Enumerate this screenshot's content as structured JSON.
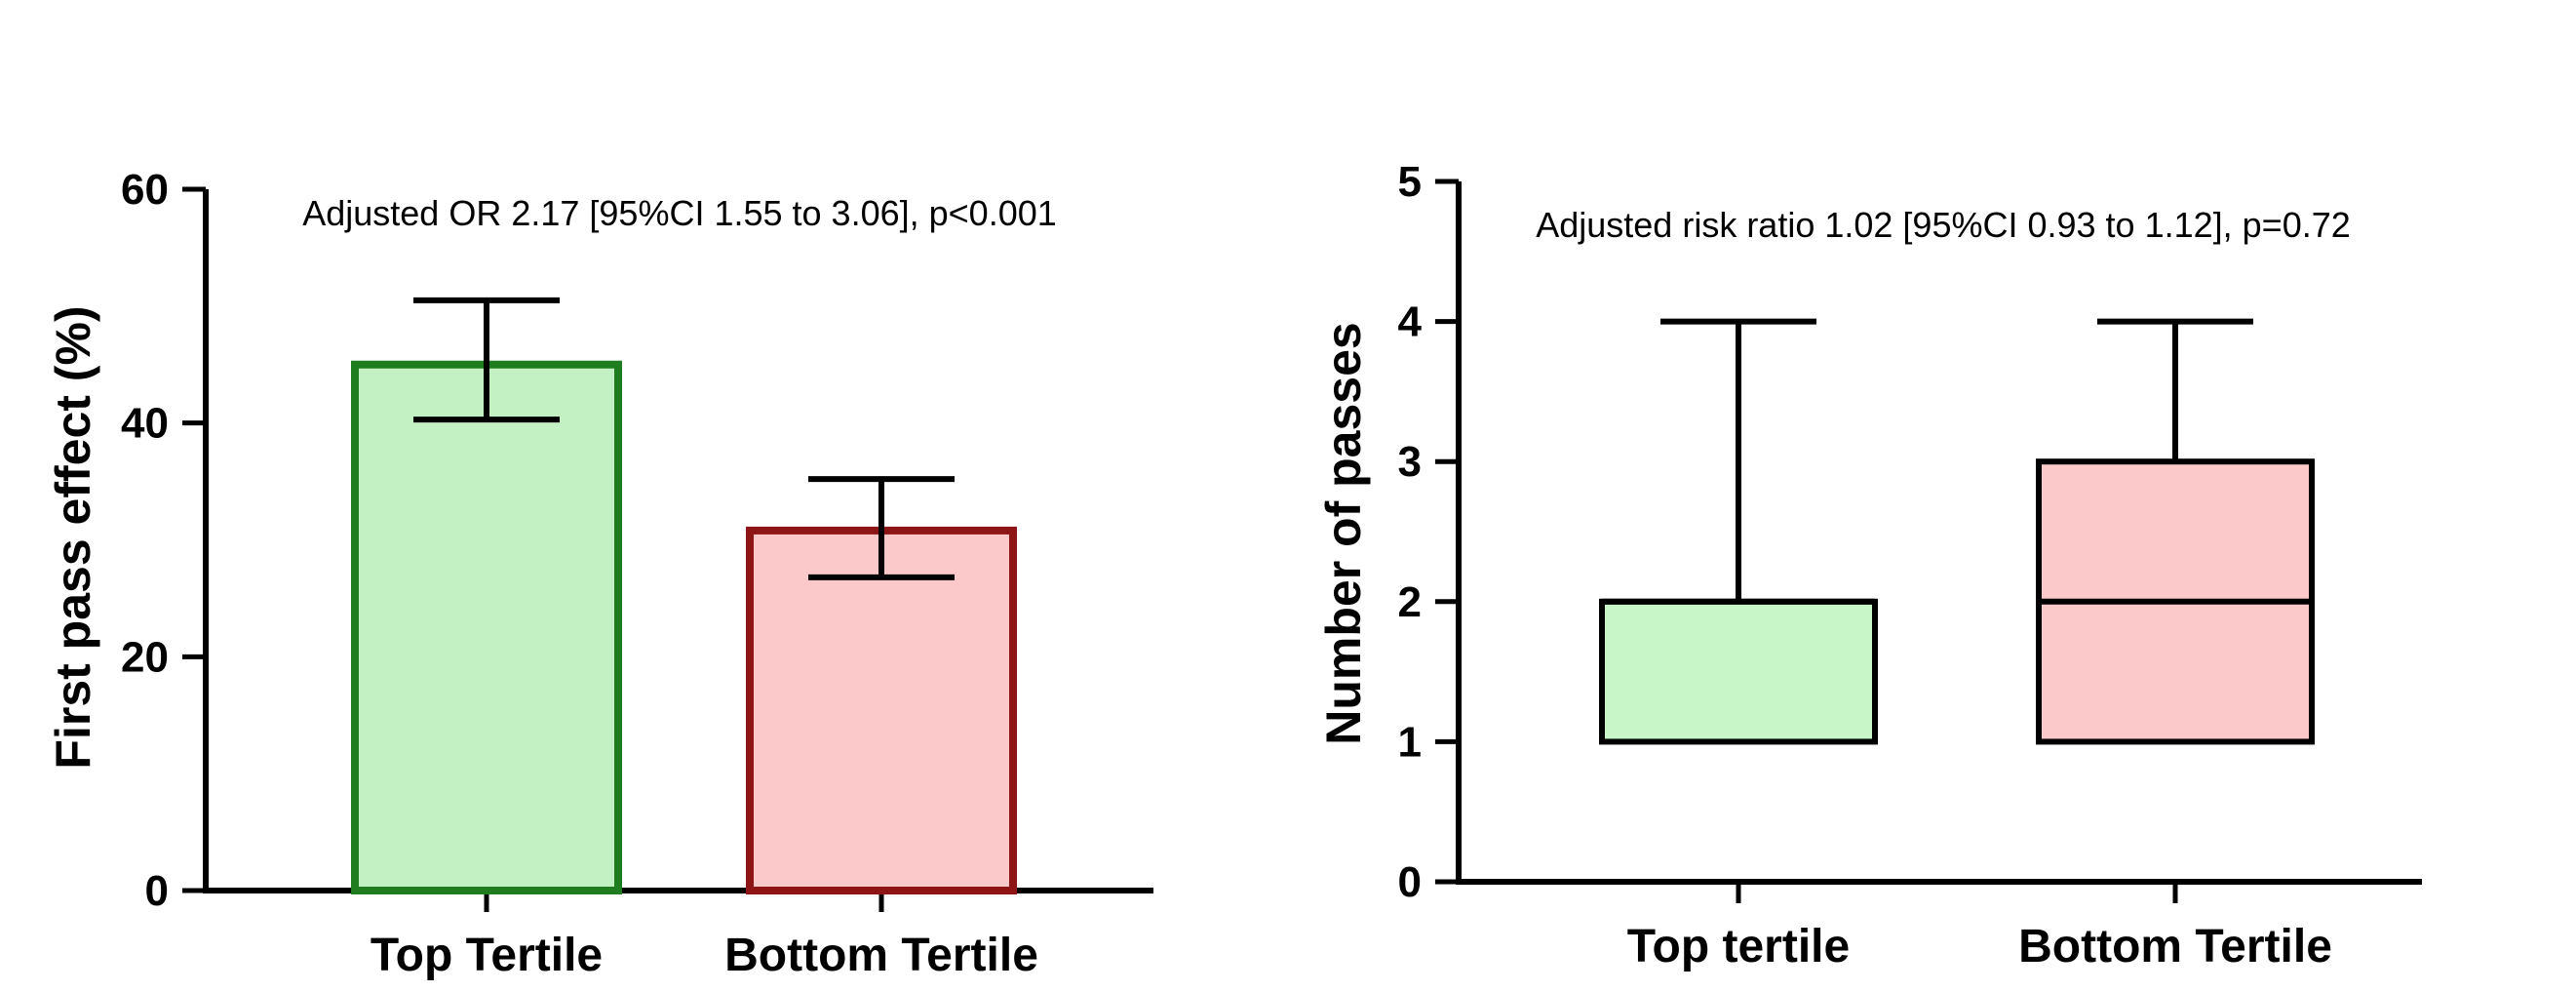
{
  "figure": {
    "background_color": "#ffffff",
    "panels": 2
  },
  "chart_data": [
    {
      "type": "bar",
      "panel": "left",
      "annotation": "Adjusted OR 2.17 [95%CI 1.55 to 3.06], p<0.001",
      "ylabel": "First pass effect (%)",
      "xlabel": "",
      "ylim": [
        0,
        60
      ],
      "yticks": [
        0,
        20,
        40,
        60
      ],
      "categories": [
        "Top Tertile",
        "Bottom Tertile"
      ],
      "values": [
        45,
        30.8
      ],
      "error_low": [
        40.3,
        26.8
      ],
      "error_high": [
        50.5,
        35.2
      ],
      "bar_fill_colors": [
        "#c3f1c3",
        "#fbc9c9"
      ],
      "bar_border_colors": [
        "#1f7d1f",
        "#8e1515"
      ],
      "error_bar_color": "#000000",
      "grid": false,
      "legend": "none"
    },
    {
      "type": "box",
      "panel": "right",
      "annotation": "Adjusted risk ratio 1.02 [95%CI 0.93 to 1.12], p=0.72",
      "ylabel": "Number of passes",
      "xlabel": "",
      "ylim": [
        0,
        5
      ],
      "yticks": [
        0,
        1,
        2,
        3,
        4,
        5
      ],
      "categories": [
        "Top tertile",
        "Bottom Tertile"
      ],
      "boxes": [
        {
          "category": "Top tertile",
          "whisker_low": 1,
          "q1": 1,
          "median": 2,
          "q3": 2,
          "whisker_high": 4
        },
        {
          "category": "Bottom Tertile",
          "whisker_low": 1,
          "q1": 1,
          "median": 2,
          "q3": 3,
          "whisker_high": 4
        }
      ],
      "box_fill_colors": [
        "#c9f6c9",
        "#fbc9c9"
      ],
      "box_border_color": "#000000",
      "whisker_color": "#000000",
      "grid": false,
      "legend": "none"
    }
  ]
}
